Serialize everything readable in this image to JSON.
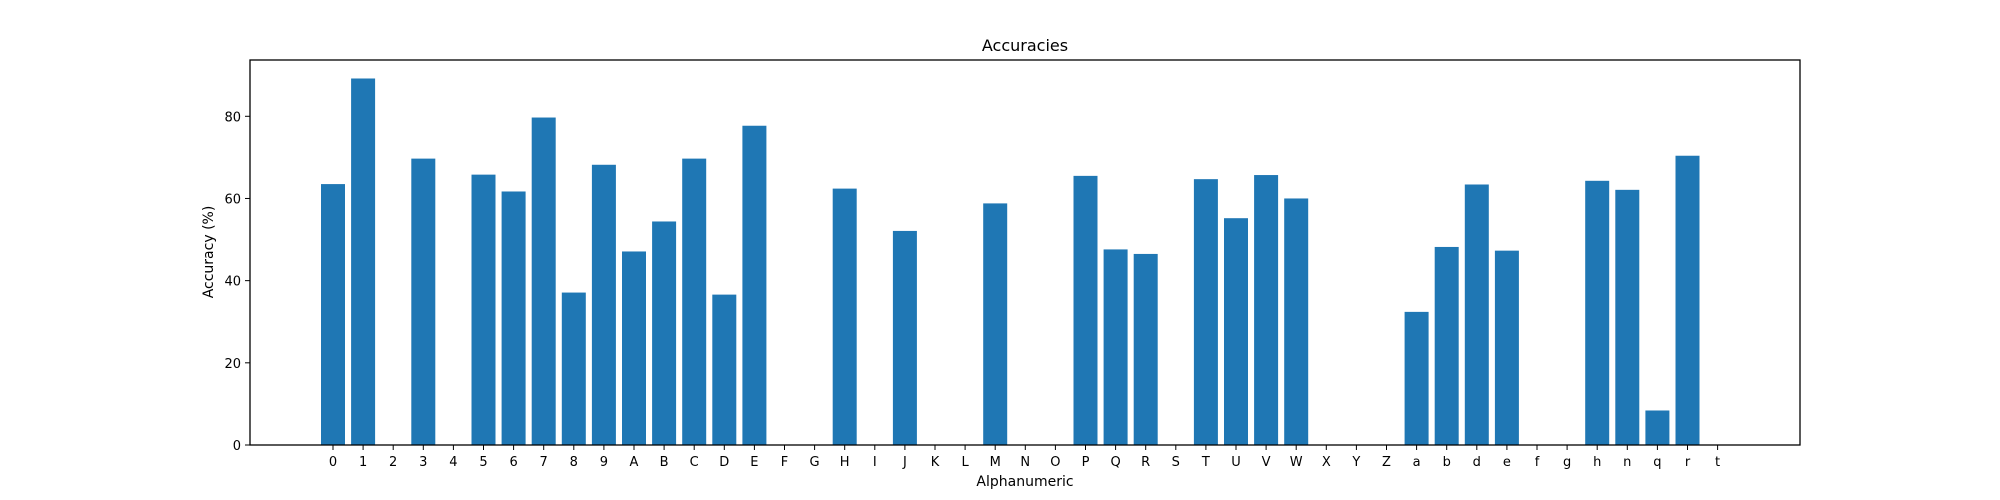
{
  "chart_data": {
    "type": "bar",
    "title": "Accuracies",
    "xlabel": "Alphanumeric",
    "ylabel": "Accuracy (%)",
    "categories": [
      "0",
      "1",
      "2",
      "3",
      "4",
      "5",
      "6",
      "7",
      "8",
      "9",
      "A",
      "B",
      "C",
      "D",
      "E",
      "F",
      "G",
      "H",
      "I",
      "J",
      "K",
      "L",
      "M",
      "N",
      "O",
      "P",
      "Q",
      "R",
      "S",
      "T",
      "U",
      "V",
      "W",
      "X",
      "Y",
      "Z",
      "a",
      "b",
      "d",
      "e",
      "f",
      "g",
      "h",
      "n",
      "q",
      "r",
      "t"
    ],
    "values": [
      63.5,
      89.2,
      0,
      69.7,
      0,
      65.8,
      61.7,
      79.7,
      37.1,
      68.2,
      47.1,
      54.4,
      69.7,
      36.6,
      77.7,
      0,
      0,
      62.4,
      0,
      52.1,
      0,
      0,
      58.8,
      0,
      0,
      65.5,
      47.6,
      46.5,
      0,
      64.7,
      55.2,
      65.7,
      60.0,
      0,
      0,
      0,
      32.4,
      48.2,
      63.4,
      47.3,
      0,
      0,
      64.3,
      62.1,
      8.4,
      70.4,
      0
    ],
    "ylim": [
      0,
      93.7
    ],
    "yticks": [
      0,
      20,
      40,
      60,
      80
    ],
    "grid": false,
    "bar_color": "#1f77b4"
  }
}
